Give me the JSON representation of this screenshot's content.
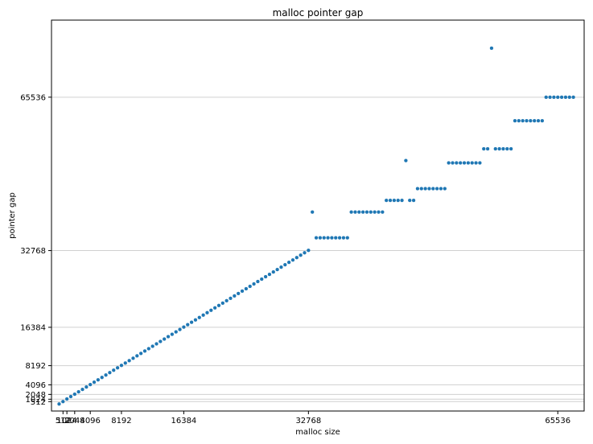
{
  "chart_data": {
    "type": "scatter",
    "title": "malloc pointer gap",
    "xlabel": "malloc size",
    "ylabel": "pointer gap",
    "xlim": [
      -1000,
      69000
    ],
    "ylim": [
      -1500,
      82000
    ],
    "xticks": [
      512,
      1024,
      2048,
      4096,
      8192,
      16384,
      32768,
      65536
    ],
    "xtick_labels": [
      "512",
      "1024",
      "2048",
      "4096",
      "8192",
      "16384",
      "32768",
      "65536"
    ],
    "yticks": [
      512,
      1024,
      2048,
      4096,
      8192,
      16384,
      32768,
      65536
    ],
    "ytick_labels": [
      "512",
      "1024",
      "2048",
      "4096",
      "8192",
      "16384",
      "32768",
      "65536"
    ],
    "grid": "y",
    "legend": "none",
    "marker_color": "#1f77b4",
    "points": [
      [
        0,
        0
      ],
      [
        512,
        512
      ],
      [
        1024,
        1072
      ],
      [
        1536,
        1584
      ],
      [
        2048,
        2096
      ],
      [
        2560,
        2608
      ],
      [
        3072,
        3120
      ],
      [
        3584,
        3632
      ],
      [
        4096,
        4144
      ],
      [
        4608,
        4656
      ],
      [
        5120,
        5168
      ],
      [
        5632,
        5680
      ],
      [
        6144,
        6192
      ],
      [
        6656,
        6704
      ],
      [
        7168,
        7216
      ],
      [
        7680,
        7728
      ],
      [
        8192,
        8240
      ],
      [
        8704,
        8752
      ],
      [
        9216,
        9264
      ],
      [
        9728,
        9776
      ],
      [
        10240,
        10288
      ],
      [
        10752,
        10800
      ],
      [
        11264,
        11312
      ],
      [
        11776,
        11824
      ],
      [
        12288,
        12336
      ],
      [
        12800,
        12848
      ],
      [
        13312,
        13360
      ],
      [
        13824,
        13872
      ],
      [
        14336,
        14384
      ],
      [
        14848,
        14896
      ],
      [
        15360,
        15408
      ],
      [
        15872,
        15920
      ],
      [
        16384,
        16432
      ],
      [
        16896,
        16944
      ],
      [
        17408,
        17456
      ],
      [
        17920,
        17968
      ],
      [
        18432,
        18480
      ],
      [
        18944,
        18992
      ],
      [
        19456,
        19504
      ],
      [
        19968,
        20016
      ],
      [
        20480,
        20528
      ],
      [
        20992,
        21040
      ],
      [
        21504,
        21552
      ],
      [
        22016,
        22064
      ],
      [
        22528,
        22576
      ],
      [
        23040,
        23088
      ],
      [
        23552,
        23600
      ],
      [
        24064,
        24112
      ],
      [
        24576,
        24624
      ],
      [
        25088,
        25136
      ],
      [
        25600,
        25648
      ],
      [
        26112,
        26160
      ],
      [
        26624,
        26672
      ],
      [
        27136,
        27184
      ],
      [
        27648,
        27696
      ],
      [
        28160,
        28208
      ],
      [
        28672,
        28720
      ],
      [
        29184,
        29232
      ],
      [
        29696,
        29744
      ],
      [
        30208,
        30256
      ],
      [
        30720,
        30768
      ],
      [
        31232,
        31280
      ],
      [
        31744,
        31792
      ],
      [
        32256,
        32304
      ],
      [
        32768,
        32816
      ],
      [
        33280,
        41000
      ],
      [
        33792,
        35500
      ],
      [
        34304,
        35500
      ],
      [
        34816,
        35500
      ],
      [
        35328,
        35500
      ],
      [
        35840,
        35500
      ],
      [
        36352,
        35500
      ],
      [
        36864,
        35500
      ],
      [
        37376,
        35500
      ],
      [
        37888,
        35500
      ],
      [
        38400,
        41000
      ],
      [
        38912,
        41000
      ],
      [
        39424,
        41000
      ],
      [
        39936,
        41000
      ],
      [
        40448,
        41000
      ],
      [
        40960,
        41000
      ],
      [
        41472,
        41000
      ],
      [
        41984,
        41000
      ],
      [
        42496,
        41000
      ],
      [
        43008,
        43500
      ],
      [
        43520,
        43500
      ],
      [
        44032,
        43500
      ],
      [
        44544,
        43500
      ],
      [
        45056,
        43500
      ],
      [
        45568,
        52000
      ],
      [
        46080,
        43500
      ],
      [
        46592,
        43500
      ],
      [
        47104,
        46000
      ],
      [
        47616,
        46000
      ],
      [
        48128,
        46000
      ],
      [
        48640,
        46000
      ],
      [
        49152,
        46000
      ],
      [
        49664,
        46000
      ],
      [
        50176,
        46000
      ],
      [
        50688,
        46000
      ],
      [
        51200,
        51500
      ],
      [
        51712,
        51500
      ],
      [
        52224,
        51500
      ],
      [
        52736,
        51500
      ],
      [
        53248,
        51500
      ],
      [
        53760,
        51500
      ],
      [
        54272,
        51500
      ],
      [
        54784,
        51500
      ],
      [
        55296,
        51500
      ],
      [
        55808,
        54500
      ],
      [
        56320,
        54500
      ],
      [
        56832,
        76000
      ],
      [
        57344,
        54500
      ],
      [
        57856,
        54500
      ],
      [
        58368,
        54500
      ],
      [
        58880,
        54500
      ],
      [
        59392,
        54500
      ],
      [
        59904,
        60500
      ],
      [
        60416,
        60500
      ],
      [
        60928,
        60500
      ],
      [
        61440,
        60500
      ],
      [
        61952,
        60500
      ],
      [
        62464,
        60500
      ],
      [
        62976,
        60500
      ],
      [
        63488,
        60500
      ],
      [
        64000,
        65536
      ],
      [
        64512,
        65536
      ],
      [
        65024,
        65536
      ],
      [
        65536,
        65536
      ],
      [
        66048,
        65536
      ],
      [
        66560,
        65536
      ],
      [
        67072,
        65536
      ],
      [
        67584,
        65536
      ]
    ]
  }
}
